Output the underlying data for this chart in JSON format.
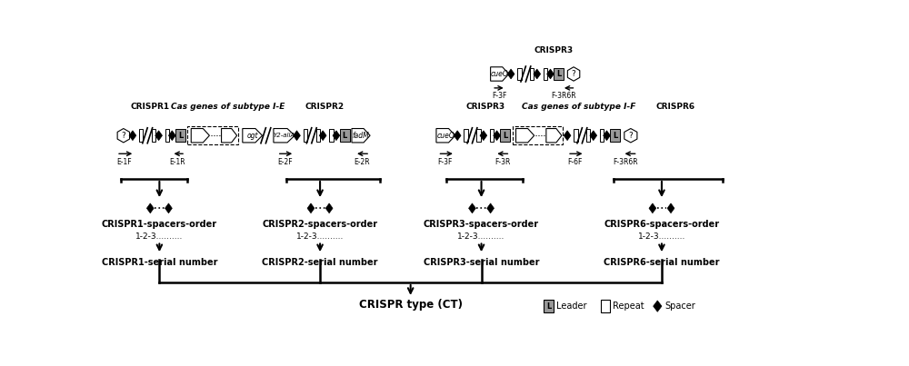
{
  "bg_color": "#ffffff",
  "title_fontsize": 6.5,
  "label_fontsize": 6.0,
  "bold_fontsize": 7.0,
  "crispr1_label": "CRISPR1",
  "crispr2_label": "CRISPR2",
  "crispr3_label": "CRISPR3",
  "crispr6_label": "CRISPR6",
  "cas_ie_label": "Cas genes of subtype I-E",
  "cas_if_label": "Cas genes of subtype I-F",
  "spacer_order_labels": [
    "CRISPR1-spacers-order",
    "CRISPR2-spacers-order",
    "CRISPR3-spacers-order",
    "CRISPR6-spacers-order"
  ],
  "numbering_labels": [
    "1-2-3..........",
    "1-2-3..........",
    "1-2-3..........",
    "1-2-3.........."
  ],
  "serial_labels": [
    "CRISPR1-serial number",
    "CRISPR2-serial number",
    "CRISPR3-serial number",
    "CRISPR6-serial number"
  ],
  "crispr_type_label": "CRISPR type (CT)",
  "legend_leader": "Leader",
  "legend_repeat": "Repeat",
  "legend_spacer": "Spacer"
}
